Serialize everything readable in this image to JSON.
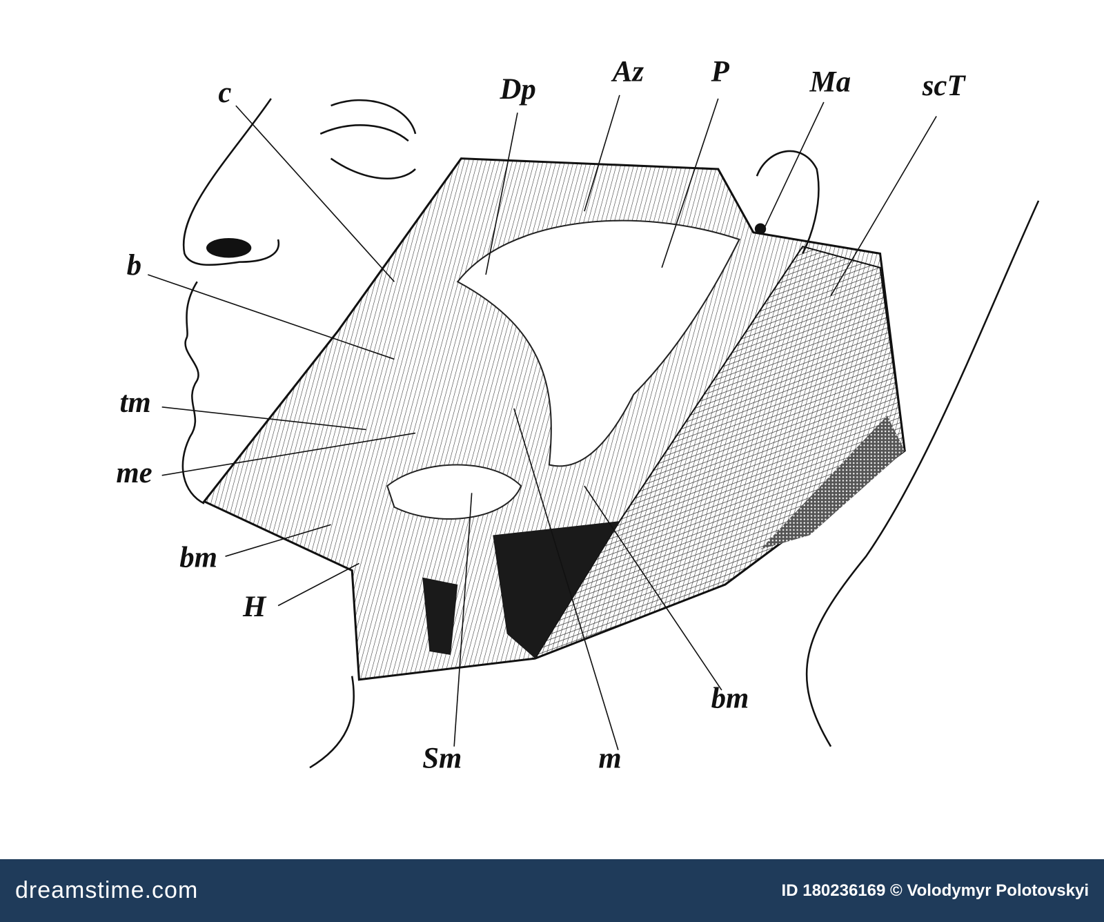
{
  "labels": [
    {
      "text": "c"
    },
    {
      "text": "Dp"
    },
    {
      "text": "Az"
    },
    {
      "text": "P"
    },
    {
      "text": "Ma"
    },
    {
      "text": "scT"
    },
    {
      "text": "b"
    },
    {
      "text": "tm"
    },
    {
      "text": "me"
    },
    {
      "text": "bm"
    },
    {
      "text": "H"
    },
    {
      "text": "Sm"
    },
    {
      "text": "m"
    },
    {
      "text": "bm"
    }
  ],
  "footer": {
    "brand": "dreamstime.com",
    "credit": "ID 180236169 © Volodymyr Polotovskyi"
  }
}
